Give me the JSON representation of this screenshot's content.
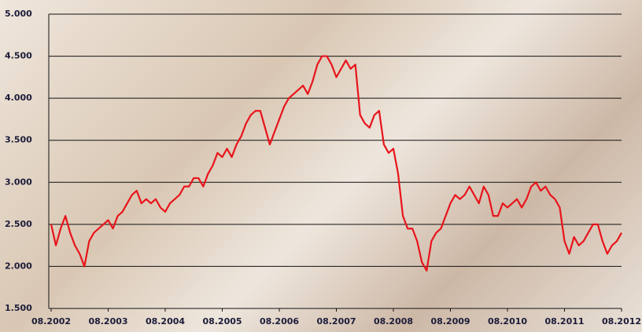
{
  "chart_data": {
    "type": "line",
    "x": [
      "08.2002",
      "09.2002",
      "10.2002",
      "11.2002",
      "12.2002",
      "01.2003",
      "02.2003",
      "03.2003",
      "04.2003",
      "05.2003",
      "06.2003",
      "07.2003",
      "08.2003",
      "09.2003",
      "10.2003",
      "11.2003",
      "12.2003",
      "01.2004",
      "02.2004",
      "03.2004",
      "04.2004",
      "05.2004",
      "06.2004",
      "07.2004",
      "08.2004",
      "09.2004",
      "10.2004",
      "11.2004",
      "12.2004",
      "01.2005",
      "02.2005",
      "03.2005",
      "04.2005",
      "05.2005",
      "06.2005",
      "07.2005",
      "08.2005",
      "09.2005",
      "10.2005",
      "11.2005",
      "12.2005",
      "01.2006",
      "02.2006",
      "03.2006",
      "04.2006",
      "05.2006",
      "06.2006",
      "07.2006",
      "08.2006",
      "09.2006",
      "10.2006",
      "11.2006",
      "12.2006",
      "01.2007",
      "02.2007",
      "03.2007",
      "04.2007",
      "05.2007",
      "06.2007",
      "07.2007",
      "08.2007",
      "09.2007",
      "10.2007",
      "11.2007",
      "12.2007",
      "01.2008",
      "02.2008",
      "03.2008",
      "04.2008",
      "05.2008",
      "06.2008",
      "07.2008",
      "08.2008",
      "09.2008",
      "10.2008",
      "11.2008",
      "12.2008",
      "01.2009",
      "02.2009",
      "03.2009",
      "04.2009",
      "05.2009",
      "06.2009",
      "07.2009",
      "08.2009",
      "09.2009",
      "10.2009",
      "11.2009",
      "12.2009",
      "01.2010",
      "02.2010",
      "03.2010",
      "04.2010",
      "05.2010",
      "06.2010",
      "07.2010",
      "08.2010",
      "09.2010",
      "10.2010",
      "11.2010",
      "12.2010",
      "01.2011",
      "02.2011",
      "03.2011",
      "04.2011",
      "05.2011",
      "06.2011",
      "07.2011",
      "08.2011",
      "09.2011",
      "10.2011",
      "11.2011",
      "12.2011",
      "01.2012",
      "02.2012",
      "03.2012",
      "04.2012",
      "05.2012",
      "06.2012",
      "07.2012",
      "08.2012"
    ],
    "series": [
      {
        "color": "#e8141b",
        "values": [
          2500,
          2250,
          2450,
          2600,
          2400,
          2250,
          2150,
          2000,
          2300,
          2400,
          2450,
          2500,
          2550,
          2450,
          2600,
          2650,
          2750,
          2850,
          2900,
          2750,
          2800,
          2750,
          2800,
          2700,
          2650,
          2750,
          2800,
          2850,
          2950,
          2950,
          3050,
          3050,
          2950,
          3100,
          3200,
          3350,
          3300,
          3400,
          3300,
          3450,
          3550,
          3700,
          3800,
          3850,
          3850,
          3650,
          3450,
          3600,
          3750,
          3900,
          4000,
          4050,
          4100,
          4150,
          4050,
          4200,
          4400,
          4500,
          4500,
          4400,
          4250,
          4350,
          4450,
          4350,
          4400,
          3800,
          3700,
          3650,
          3800,
          3850,
          3450,
          3350,
          3400,
          3100,
          2600,
          2450,
          2450,
          2300,
          2050,
          1950,
          2300,
          2400,
          2450,
          2600,
          2750,
          2850,
          2800,
          2850,
          2950,
          2850,
          2750,
          2950,
          2850,
          2600,
          2600,
          2750,
          2700,
          2750,
          2800,
          2700,
          2800,
          2950,
          3000,
          2900,
          2950,
          2850,
          2800,
          2700,
          2300,
          2150,
          2350,
          2250,
          2300,
          2400,
          2500,
          2500,
          2300,
          2150,
          2250,
          2300,
          2400
        ]
      }
    ],
    "xticks": [
      "08.2002",
      "08.2003",
      "08.2004",
      "08.2005",
      "08.2006",
      "08.2007",
      "08.2008",
      "08.2009",
      "08.2010",
      "08.2011",
      "08.2012"
    ],
    "ylim": [
      1500,
      5000
    ],
    "yticks": [
      {
        "value": 1500,
        "label": "1.500"
      },
      {
        "value": 2000,
        "label": "2.000"
      },
      {
        "value": 2500,
        "label": "2.500"
      },
      {
        "value": 3000,
        "label": "3.000"
      },
      {
        "value": 3500,
        "label": "3.500"
      },
      {
        "value": 4000,
        "label": "4.000"
      },
      {
        "value": 4500,
        "label": "4.500"
      },
      {
        "value": 5000,
        "label": "5.000"
      }
    ],
    "grid": true
  }
}
